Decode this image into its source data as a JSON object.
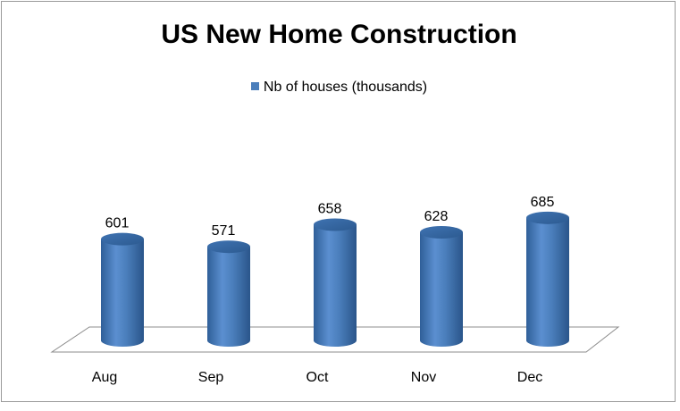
{
  "chart_data": {
    "type": "bar",
    "title": "US New Home Construction",
    "categories": [
      "Aug",
      "Sep",
      "Oct",
      "Nov",
      "Dec"
    ],
    "series": [
      {
        "name": "Nb of houses (thousands)",
        "values": [
          601,
          571,
          658,
          628,
          685
        ]
      }
    ],
    "data_labels": [
      "601",
      "571",
      "658",
      "628",
      "685"
    ],
    "xlabel": "",
    "ylabel": "",
    "grid": false,
    "legend_position": "top",
    "bar_style": "3d-cylinder",
    "colors": {
      "bar": "#4a7ebb",
      "bar_dark": "#2c5a90",
      "bar_light": "#7aa6dc"
    }
  }
}
